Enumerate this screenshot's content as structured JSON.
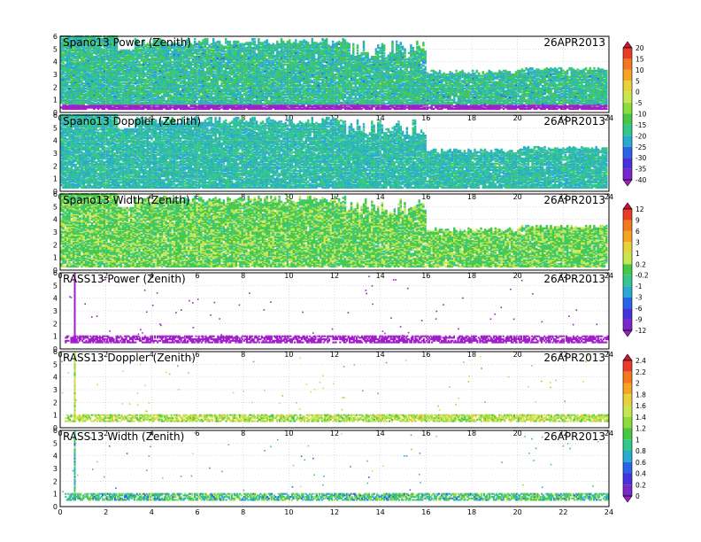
{
  "chart_data": {
    "type": "heatmap",
    "date": "26APR2013",
    "x_ticks": [
      "0",
      "2",
      "4",
      "6",
      "8",
      "10",
      "12",
      "14",
      "16",
      "18",
      "20",
      "22",
      "24"
    ],
    "y_ticks": [
      "0",
      "1",
      "2",
      "3",
      "4",
      "5",
      "6"
    ],
    "xlim": [
      0,
      24
    ],
    "ylim": [
      0,
      6
    ],
    "grid": true,
    "panels": [
      {
        "id": "spano-power",
        "title": "Spano13 Power (Zenith)",
        "kind": "dense",
        "colorbar": 0,
        "typical": -17,
        "spread": 6
      },
      {
        "id": "spano-doppler",
        "title": "Spano13 Doppler (Zenith)",
        "kind": "dense",
        "colorbar": 0,
        "typical": -18,
        "spread": 4
      },
      {
        "id": "spano-width",
        "title": "Spano13 Width (Zenith)",
        "kind": "dense",
        "colorbar": 1,
        "typical": 0.2,
        "spread": 2
      },
      {
        "id": "rass-power",
        "title": "RASS13 Power (Zenith)",
        "kind": "sparse",
        "colorbar": 1,
        "typical": -12,
        "spread": 1
      },
      {
        "id": "rass-doppler",
        "title": "RASS13 Doppler (Zenith)",
        "kind": "sparse",
        "colorbar": 2,
        "typical": 1.4,
        "spread": 0.3
      },
      {
        "id": "rass-width",
        "title": "RASS13 Width (Zenith)",
        "kind": "sparse",
        "colorbar": 2,
        "typical": 1.0,
        "spread": 0.4
      }
    ],
    "colorbars": [
      {
        "id": "colorbar-power-doppler",
        "labels": [
          "20",
          "15",
          "10",
          "5",
          "0",
          "-5",
          "-10",
          "-15",
          "-20",
          "-25",
          "-30",
          "-35",
          "-40"
        ],
        "colors": [
          "#c8143c",
          "#e63c28",
          "#f5781e",
          "#f5a523",
          "#e6d23c",
          "#c8e650",
          "#8cdc3c",
          "#46c846",
          "#32c88c",
          "#28aad2",
          "#2864e6",
          "#4632dc",
          "#7828c8",
          "#a01ec8"
        ]
      },
      {
        "id": "colorbar-width-power",
        "labels": [
          "12",
          "9",
          "6",
          "3",
          "1",
          "0.2",
          "-0.2",
          "-1",
          "-3",
          "-6",
          "-9",
          "-12"
        ],
        "colors": [
          "#c8143c",
          "#e63c28",
          "#f5781e",
          "#f5a523",
          "#e6d23c",
          "#c8e650",
          "#46c846",
          "#32c88c",
          "#28aad2",
          "#2864e6",
          "#4632dc",
          "#7828c8",
          "#a01ec8"
        ]
      },
      {
        "id": "colorbar-doppler-width",
        "labels": [
          "2.4",
          "2.2",
          "2",
          "1.8",
          "1.6",
          "1.4",
          "1.2",
          "1",
          "0.8",
          "0.6",
          "0.4",
          "0.2",
          "0"
        ],
        "colors": [
          "#c8143c",
          "#e63c28",
          "#f5781e",
          "#f5a523",
          "#e6d23c",
          "#c8e650",
          "#8cdc3c",
          "#46c846",
          "#32c88c",
          "#28aad2",
          "#2864e6",
          "#4632dc",
          "#7828c8",
          "#a01ec8"
        ]
      }
    ]
  }
}
